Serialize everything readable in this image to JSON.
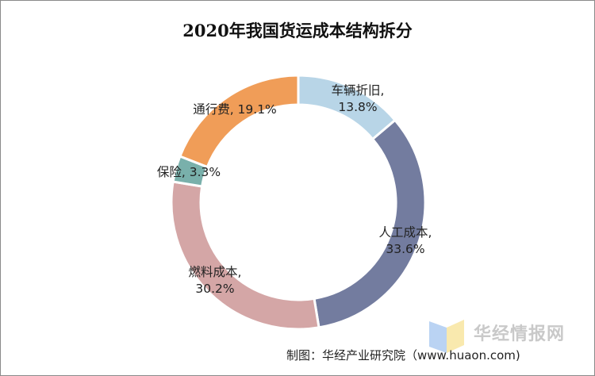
{
  "chart_data": {
    "type": "pie",
    "subtype": "donut",
    "title": "2020年我国货运成本结构拆分",
    "categories": [
      "车辆折旧",
      "人工成本",
      "燃料成本",
      "保险",
      "通行费"
    ],
    "values": [
      13.8,
      33.6,
      30.2,
      3.3,
      19.1
    ],
    "unit": "%",
    "data_labels": [
      "车辆折旧,\n13.8%",
      "人工成本,\n33.6%",
      "燃料成本,\n30.2%",
      "保险, 3.3%",
      "通行费, 19.1%"
    ],
    "colors": [
      "#b8d5e7",
      "#737c9f",
      "#d4a6a6",
      "#79b0ab",
      "#f09d58"
    ],
    "start_angle": "top",
    "direction": "clockwise"
  },
  "footer": "制图：华经产业研究院（www.huaon.com)",
  "watermark": "华经情报网"
}
